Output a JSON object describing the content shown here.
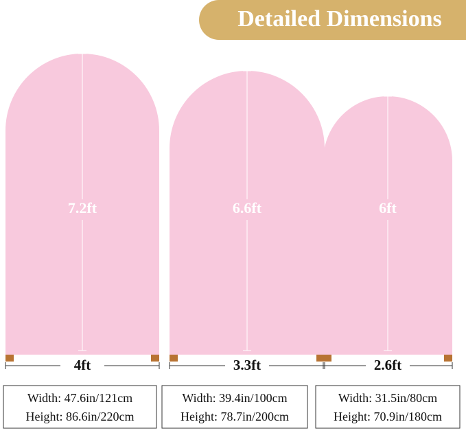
{
  "header": {
    "title": "Detailed Dimensions"
  },
  "arches": [
    {
      "height_label": "7.2ft",
      "width_label": "4ft",
      "width_spec": "Width: 47.6in/121cm",
      "height_spec": "Height: 86.6in/220cm"
    },
    {
      "height_label": "6.6ft",
      "width_label": "3.3ft",
      "width_spec": "Width: 39.4in/100cm",
      "height_spec": "Height: 78.7in/200cm"
    },
    {
      "height_label": "6ft",
      "width_label": "2.6ft",
      "width_spec": "Width: 31.5in/80cm",
      "height_spec": "Height: 70.9in/180cm"
    }
  ]
}
